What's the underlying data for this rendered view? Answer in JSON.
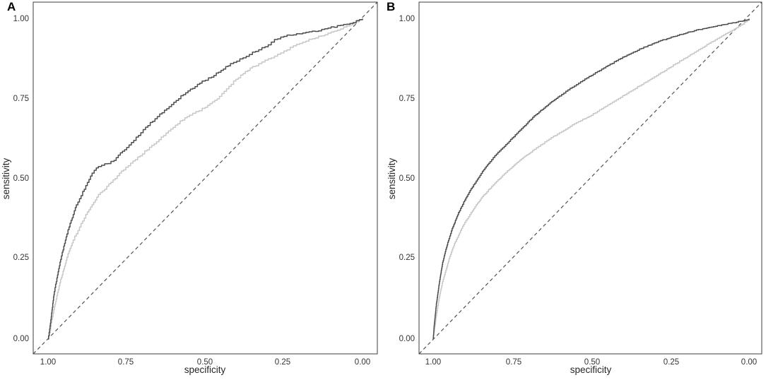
{
  "figure": {
    "background": "#ffffff",
    "border_color": "#3c3c3c",
    "text_color": "#2b2b2b",
    "description": "Two-panel ROC curve figure, panels A and B, each with a dark gray ROC curve, a light gray ROC curve, and a dashed diagonal chance line"
  },
  "chart_data": [
    {
      "type": "line",
      "panel_label": "A",
      "xlabel": "specificity",
      "ylabel": "sensitivity",
      "x_axis_reversed": true,
      "xlim": [
        1.0,
        0.0
      ],
      "ylim": [
        0.0,
        1.0
      ],
      "x_tick_labels": [
        "1.00",
        "0.75",
        "0.50",
        "0.25",
        "0.00"
      ],
      "x_tick_values": [
        1.0,
        0.75,
        0.5,
        0.25,
        0.0
      ],
      "y_tick_labels": [
        "0.00",
        "0.25",
        "0.50",
        "0.75",
        "1.00"
      ],
      "y_tick_values": [
        0.0,
        0.25,
        0.5,
        0.75,
        1.0
      ],
      "grid": false,
      "legend": "none",
      "reference_line": {
        "shape": "diagonal",
        "style": "dashed",
        "color": "#525252",
        "from": [
          1.0,
          0.0
        ],
        "to": [
          0.0,
          1.0
        ]
      },
      "series": [
        {
          "name": "dark-gray-roc-curve",
          "color": "#4d4d4d",
          "texture": "jagged-empirical",
          "points": [
            [
              1.0,
              0.0
            ],
            [
              0.995,
              0.03
            ],
            [
              0.99,
              0.07
            ],
            [
              0.985,
              0.11
            ],
            [
              0.98,
              0.15
            ],
            [
              0.97,
              0.2
            ],
            [
              0.96,
              0.25
            ],
            [
              0.95,
              0.29
            ],
            [
              0.94,
              0.33
            ],
            [
              0.93,
              0.36
            ],
            [
              0.92,
              0.39
            ],
            [
              0.91,
              0.42
            ],
            [
              0.9,
              0.44
            ],
            [
              0.88,
              0.48
            ],
            [
              0.86,
              0.52
            ],
            [
              0.84,
              0.54
            ],
            [
              0.81,
              0.55
            ],
            [
              0.79,
              0.56
            ],
            [
              0.77,
              0.58
            ],
            [
              0.75,
              0.6
            ],
            [
              0.72,
              0.63
            ],
            [
              0.69,
              0.66
            ],
            [
              0.66,
              0.69
            ],
            [
              0.63,
              0.715
            ],
            [
              0.6,
              0.74
            ],
            [
              0.57,
              0.765
            ],
            [
              0.54,
              0.785
            ],
            [
              0.51,
              0.805
            ],
            [
              0.48,
              0.82
            ],
            [
              0.45,
              0.84
            ],
            [
              0.42,
              0.86
            ],
            [
              0.39,
              0.875
            ],
            [
              0.36,
              0.89
            ],
            [
              0.33,
              0.905
            ],
            [
              0.3,
              0.92
            ],
            [
              0.28,
              0.935
            ],
            [
              0.26,
              0.945
            ],
            [
              0.23,
              0.95
            ],
            [
              0.2,
              0.955
            ],
            [
              0.17,
              0.96
            ],
            [
              0.14,
              0.965
            ],
            [
              0.11,
              0.972
            ],
            [
              0.08,
              0.978
            ],
            [
              0.05,
              0.985
            ],
            [
              0.03,
              0.99
            ],
            [
              0.0,
              1.0
            ]
          ]
        },
        {
          "name": "light-gray-roc-curve",
          "color": "#c7c7c7",
          "texture": "jagged-empirical",
          "points": [
            [
              1.0,
              0.0
            ],
            [
              0.995,
              0.02
            ],
            [
              0.99,
              0.05
            ],
            [
              0.98,
              0.1
            ],
            [
              0.97,
              0.145
            ],
            [
              0.96,
              0.185
            ],
            [
              0.95,
              0.22
            ],
            [
              0.94,
              0.255
            ],
            [
              0.93,
              0.285
            ],
            [
              0.92,
              0.31
            ],
            [
              0.9,
              0.35
            ],
            [
              0.88,
              0.39
            ],
            [
              0.86,
              0.42
            ],
            [
              0.84,
              0.45
            ],
            [
              0.82,
              0.47
            ],
            [
              0.8,
              0.49
            ],
            [
              0.78,
              0.51
            ],
            [
              0.76,
              0.53
            ],
            [
              0.73,
              0.555
            ],
            [
              0.7,
              0.58
            ],
            [
              0.67,
              0.605
            ],
            [
              0.64,
              0.63
            ],
            [
              0.61,
              0.655
            ],
            [
              0.58,
              0.68
            ],
            [
              0.55,
              0.7
            ],
            [
              0.52,
              0.715
            ],
            [
              0.5,
              0.725
            ],
            [
              0.47,
              0.745
            ],
            [
              0.44,
              0.775
            ],
            [
              0.41,
              0.805
            ],
            [
              0.38,
              0.83
            ],
            [
              0.35,
              0.85
            ],
            [
              0.32,
              0.865
            ],
            [
              0.29,
              0.88
            ],
            [
              0.26,
              0.895
            ],
            [
              0.23,
              0.91
            ],
            [
              0.2,
              0.925
            ],
            [
              0.17,
              0.935
            ],
            [
              0.14,
              0.945
            ],
            [
              0.11,
              0.955
            ],
            [
              0.08,
              0.965
            ],
            [
              0.05,
              0.978
            ],
            [
              0.02,
              0.99
            ],
            [
              0.0,
              1.0
            ]
          ]
        }
      ]
    },
    {
      "type": "line",
      "panel_label": "B",
      "xlabel": "specificity",
      "ylabel": "sensitivity",
      "x_axis_reversed": true,
      "xlim": [
        1.0,
        0.0
      ],
      "ylim": [
        0.0,
        1.0
      ],
      "x_tick_labels": [
        "1.00",
        "0.75",
        "0.50",
        "0.25",
        "0.00"
      ],
      "x_tick_values": [
        1.0,
        0.75,
        0.5,
        0.25,
        0.0
      ],
      "y_tick_labels": [
        "0.00",
        "0.25",
        "0.50",
        "0.75",
        "1.00"
      ],
      "y_tick_values": [
        0.0,
        0.25,
        0.5,
        0.75,
        1.0
      ],
      "grid": false,
      "legend": "none",
      "reference_line": {
        "shape": "diagonal",
        "style": "dashed",
        "color": "#525252",
        "from": [
          1.0,
          0.0
        ],
        "to": [
          0.0,
          1.0
        ]
      },
      "series": [
        {
          "name": "dark-gray-roc-curve",
          "color": "#4d4d4d",
          "texture": "slightly-jagged",
          "points": [
            [
              1.0,
              0.0
            ],
            [
              0.997,
              0.04
            ],
            [
              0.993,
              0.08
            ],
            [
              0.99,
              0.11
            ],
            [
              0.985,
              0.145
            ],
            [
              0.98,
              0.18
            ],
            [
              0.97,
              0.24
            ],
            [
              0.96,
              0.28
            ],
            [
              0.95,
              0.315
            ],
            [
              0.94,
              0.345
            ],
            [
              0.93,
              0.37
            ],
            [
              0.92,
              0.395
            ],
            [
              0.91,
              0.415
            ],
            [
              0.9,
              0.435
            ],
            [
              0.88,
              0.47
            ],
            [
              0.86,
              0.5
            ],
            [
              0.84,
              0.53
            ],
            [
              0.82,
              0.555
            ],
            [
              0.8,
              0.578
            ],
            [
              0.78,
              0.598
            ],
            [
              0.76,
              0.618
            ],
            [
              0.74,
              0.638
            ],
            [
              0.72,
              0.658
            ],
            [
              0.7,
              0.678
            ],
            [
              0.68,
              0.697
            ],
            [
              0.66,
              0.714
            ],
            [
              0.64,
              0.73
            ],
            [
              0.62,
              0.745
            ],
            [
              0.6,
              0.76
            ],
            [
              0.58,
              0.774
            ],
            [
              0.56,
              0.787
            ],
            [
              0.54,
              0.8
            ],
            [
              0.52,
              0.812
            ],
            [
              0.5,
              0.824
            ],
            [
              0.48,
              0.836
            ],
            [
              0.46,
              0.848
            ],
            [
              0.44,
              0.859
            ],
            [
              0.42,
              0.87
            ],
            [
              0.4,
              0.881
            ],
            [
              0.38,
              0.891
            ],
            [
              0.36,
              0.9
            ],
            [
              0.34,
              0.909
            ],
            [
              0.32,
              0.917
            ],
            [
              0.3,
              0.925
            ],
            [
              0.28,
              0.932
            ],
            [
              0.26,
              0.939
            ],
            [
              0.24,
              0.945
            ],
            [
              0.22,
              0.951
            ],
            [
              0.2,
              0.957
            ],
            [
              0.18,
              0.962
            ],
            [
              0.16,
              0.967
            ],
            [
              0.14,
              0.971
            ],
            [
              0.12,
              0.975
            ],
            [
              0.1,
              0.979
            ],
            [
              0.08,
              0.983
            ],
            [
              0.06,
              0.987
            ],
            [
              0.04,
              0.99
            ],
            [
              0.02,
              0.995
            ],
            [
              0.0,
              1.0
            ]
          ]
        },
        {
          "name": "light-gray-roc-curve",
          "color": "#c7c7c7",
          "texture": "slightly-jagged",
          "points": [
            [
              1.0,
              0.0
            ],
            [
              0.997,
              0.025
            ],
            [
              0.993,
              0.05
            ],
            [
              0.99,
              0.075
            ],
            [
              0.985,
              0.105
            ],
            [
              0.98,
              0.135
            ],
            [
              0.97,
              0.18
            ],
            [
              0.96,
              0.215
            ],
            [
              0.95,
              0.25
            ],
            [
              0.94,
              0.28
            ],
            [
              0.93,
              0.305
            ],
            [
              0.92,
              0.325
            ],
            [
              0.91,
              0.345
            ],
            [
              0.9,
              0.365
            ],
            [
              0.88,
              0.395
            ],
            [
              0.86,
              0.425
            ],
            [
              0.84,
              0.45
            ],
            [
              0.82,
              0.472
            ],
            [
              0.8,
              0.492
            ],
            [
              0.78,
              0.512
            ],
            [
              0.76,
              0.53
            ],
            [
              0.74,
              0.547
            ],
            [
              0.72,
              0.563
            ],
            [
              0.7,
              0.578
            ],
            [
              0.68,
              0.593
            ],
            [
              0.66,
              0.607
            ],
            [
              0.64,
              0.62
            ],
            [
              0.62,
              0.633
            ],
            [
              0.6,
              0.645
            ],
            [
              0.58,
              0.657
            ],
            [
              0.56,
              0.669
            ],
            [
              0.54,
              0.679
            ],
            [
              0.52,
              0.69
            ],
            [
              0.5,
              0.7
            ],
            [
              0.48,
              0.712
            ],
            [
              0.46,
              0.724
            ],
            [
              0.44,
              0.736
            ],
            [
              0.42,
              0.748
            ],
            [
              0.4,
              0.76
            ],
            [
              0.38,
              0.772
            ],
            [
              0.36,
              0.784
            ],
            [
              0.34,
              0.796
            ],
            [
              0.32,
              0.808
            ],
            [
              0.3,
              0.82
            ],
            [
              0.28,
              0.832
            ],
            [
              0.26,
              0.844
            ],
            [
              0.24,
              0.856
            ],
            [
              0.22,
              0.868
            ],
            [
              0.2,
              0.88
            ],
            [
              0.18,
              0.892
            ],
            [
              0.16,
              0.904
            ],
            [
              0.14,
              0.916
            ],
            [
              0.12,
              0.928
            ],
            [
              0.1,
              0.94
            ],
            [
              0.08,
              0.951
            ],
            [
              0.06,
              0.962
            ],
            [
              0.04,
              0.973
            ],
            [
              0.02,
              0.985
            ],
            [
              0.0,
              1.0
            ]
          ]
        }
      ]
    }
  ]
}
